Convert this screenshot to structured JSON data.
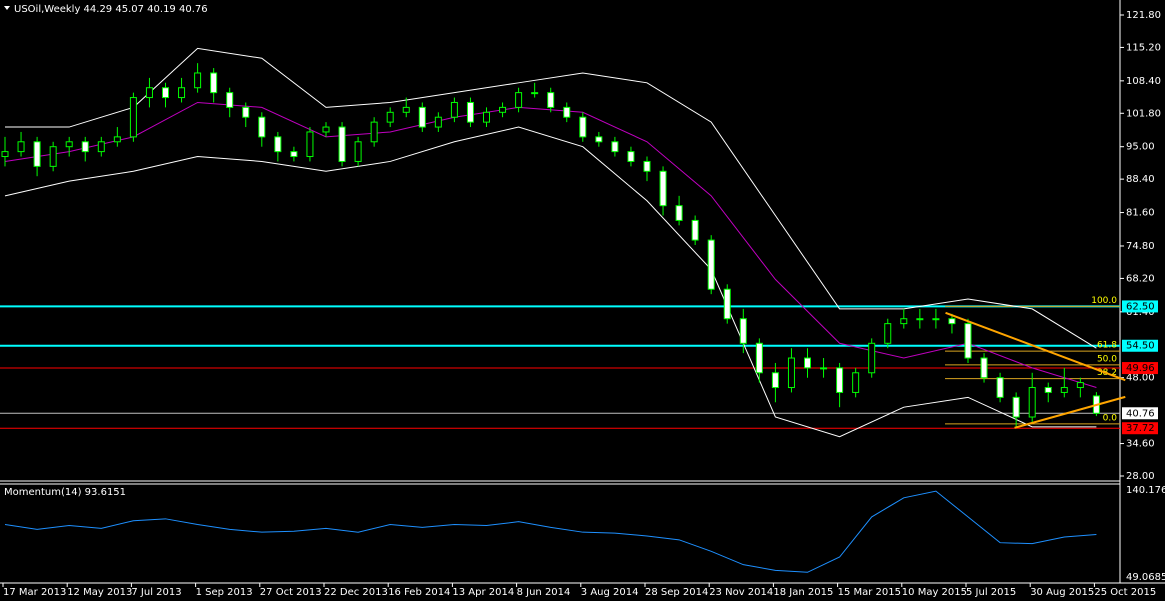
{
  "chart_data": {
    "type": "candlestick",
    "title": "USOil,Weekly  44.29 45.07 40.19 40.76",
    "x_labels": [
      "17 Mar 2013",
      "12 May 2013",
      "7 Jul 2013",
      "1 Sep 2013",
      "27 Oct 2013",
      "22 Dec 2013",
      "16 Feb 2014",
      "13 Apr 2014",
      "8 Jun 2014",
      "3 Aug 2014",
      "28 Sep 2014",
      "23 Nov 2014",
      "18 Jan 2015",
      "15 Mar 2015",
      "10 May 2015",
      "5 Jul 2015",
      "30 Aug 2015",
      "25 Oct 2015"
    ],
    "ohlc": [
      [
        93,
        97,
        91,
        94
      ],
      [
        94,
        98,
        93,
        96
      ],
      [
        96,
        97,
        89,
        91
      ],
      [
        91,
        96,
        90,
        95
      ],
      [
        95,
        97,
        93,
        96
      ],
      [
        96,
        97,
        92,
        94
      ],
      [
        94,
        97,
        93,
        96
      ],
      [
        96,
        99,
        95,
        97
      ],
      [
        97,
        106,
        96,
        105
      ],
      [
        105,
        109,
        103,
        107
      ],
      [
        107,
        108,
        103,
        105
      ],
      [
        105,
        109,
        104,
        107
      ],
      [
        107,
        112,
        106,
        110
      ],
      [
        110,
        111,
        104,
        106
      ],
      [
        106,
        107,
        101,
        103
      ],
      [
        103,
        104,
        99,
        101
      ],
      [
        101,
        102,
        95,
        97
      ],
      [
        97,
        98,
        92,
        94
      ],
      [
        94,
        95,
        92,
        93
      ],
      [
        93,
        99,
        92,
        98
      ],
      [
        98,
        100,
        97,
        99
      ],
      [
        99,
        100,
        91,
        92
      ],
      [
        92,
        97,
        91,
        96
      ],
      [
        96,
        101,
        95,
        100
      ],
      [
        100,
        103,
        99,
        102
      ],
      [
        102,
        105,
        101,
        103
      ],
      [
        103,
        104,
        98,
        99
      ],
      [
        99,
        102,
        98,
        101
      ],
      [
        101,
        105,
        100,
        104
      ],
      [
        104,
        105,
        99,
        100
      ],
      [
        100,
        103,
        99,
        102
      ],
      [
        102,
        104,
        101,
        103
      ],
      [
        103,
        107,
        102,
        106
      ],
      [
        106,
        108,
        105,
        106
      ],
      [
        106,
        107,
        102,
        103
      ],
      [
        103,
        104,
        100,
        101
      ],
      [
        101,
        102,
        96,
        97
      ],
      [
        97,
        98,
        95,
        96
      ],
      [
        96,
        97,
        93,
        94
      ],
      [
        94,
        95,
        91,
        92
      ],
      [
        92,
        93,
        88,
        90
      ],
      [
        90,
        91,
        81,
        83
      ],
      [
        83,
        85,
        79,
        80
      ],
      [
        80,
        81,
        75,
        76
      ],
      [
        76,
        77,
        65,
        66
      ],
      [
        66,
        67,
        59,
        60
      ],
      [
        60,
        62,
        53,
        55
      ],
      [
        55,
        56,
        47,
        49
      ],
      [
        49,
        51,
        43,
        46
      ],
      [
        46,
        54,
        45,
        52
      ],
      [
        52,
        54,
        48,
        50
      ],
      [
        50,
        52,
        48,
        50
      ],
      [
        50,
        51,
        42,
        45
      ],
      [
        45,
        50,
        44,
        49
      ],
      [
        49,
        56,
        48,
        55
      ],
      [
        55,
        60,
        54,
        59
      ],
      [
        59,
        62,
        58,
        60
      ],
      [
        60,
        62,
        58,
        60
      ],
      [
        60,
        62,
        58,
        60
      ],
      [
        60,
        61,
        57,
        59
      ],
      [
        59,
        60,
        51,
        52
      ],
      [
        52,
        53,
        47,
        48
      ],
      [
        48,
        49,
        43,
        44
      ],
      [
        44,
        45,
        38,
        40
      ],
      [
        40,
        49,
        39,
        46
      ],
      [
        46,
        47,
        43,
        45
      ],
      [
        45,
        50,
        44,
        46
      ],
      [
        46,
        48,
        44,
        47
      ],
      [
        44.29,
        45.07,
        40.19,
        40.76
      ]
    ],
    "bands": {
      "upper": [
        99,
        99,
        103,
        115,
        113,
        103,
        104,
        106,
        108,
        110,
        108,
        100,
        81,
        62,
        62,
        64,
        62,
        54
      ],
      "middle": [
        92,
        94,
        97,
        104,
        103,
        97,
        98,
        101,
        103,
        102,
        96,
        85,
        68,
        55,
        52,
        55,
        50,
        46
      ],
      "lower": [
        85,
        88,
        90,
        93,
        92,
        90,
        92,
        96,
        99,
        95,
        84,
        70,
        40,
        36,
        42,
        44,
        38,
        38
      ]
    },
    "ylim": [
      26.98,
      124.85
    ],
    "yticks": [
      {
        "value": 121.8,
        "label": "121.80"
      },
      {
        "value": 115.2,
        "label": "115.20"
      },
      {
        "value": 108.4,
        "label": "108.40"
      },
      {
        "value": 101.8,
        "label": "101.80"
      },
      {
        "value": 95,
        "label": "95.00"
      },
      {
        "value": 88.4,
        "label": "88.40"
      },
      {
        "value": 81.6,
        "label": "81.60"
      },
      {
        "value": 74.8,
        "label": "74.80"
      },
      {
        "value": 68.2,
        "label": "68.20"
      },
      {
        "value": 61.4,
        "label": "61.40"
      },
      {
        "value": 48,
        "label": "48.00"
      },
      {
        "value": 34.6,
        "label": "34.60"
      },
      {
        "value": 28,
        "label": "28.00"
      }
    ],
    "levels": [
      {
        "value": 62.5,
        "label": "62.50",
        "color": "#00ffff"
      },
      {
        "value": 54.5,
        "label": "54.50",
        "color": "#00ffff"
      },
      {
        "value": 49.96,
        "label": "49.96",
        "color": "#ff0000"
      },
      {
        "value": 40.76,
        "label": "40.76",
        "color": "#c0c0c0"
      },
      {
        "value": 37.72,
        "label": "37.72",
        "color": "#ff0000"
      }
    ],
    "fibo": [
      {
        "value": 62.5,
        "label": "100.0"
      },
      {
        "value": 53.4,
        "label": "61.8"
      },
      {
        "value": 50.6,
        "label": "50.0"
      },
      {
        "value": 47.8,
        "label": "38.2"
      },
      {
        "value": 38.6,
        "label": "0.0"
      }
    ],
    "trendlines": [
      [
        [
          58.6,
          61.2
        ],
        [
          69.8,
          47.5
        ]
      ],
      [
        [
          62.9,
          37.8
        ],
        [
          69.8,
          44.1
        ]
      ]
    ],
    "momentum": {
      "title": "Momentum(14) 93.6151",
      "values": [
        104,
        99,
        103,
        100,
        108,
        110,
        104,
        99,
        96,
        97,
        100,
        96,
        104,
        101,
        104,
        103,
        107,
        101,
        96,
        95,
        92,
        88,
        76,
        62,
        56,
        54,
        70,
        112,
        132,
        139,
        112,
        85,
        84,
        91,
        93.6151
      ],
      "ylim": [
        49.0685,
        140.1769
      ],
      "yticks": [
        {
          "value": 140.1769,
          "label": "140.1769"
        },
        {
          "value": 49.0685,
          "label": "49.0685"
        }
      ]
    }
  }
}
